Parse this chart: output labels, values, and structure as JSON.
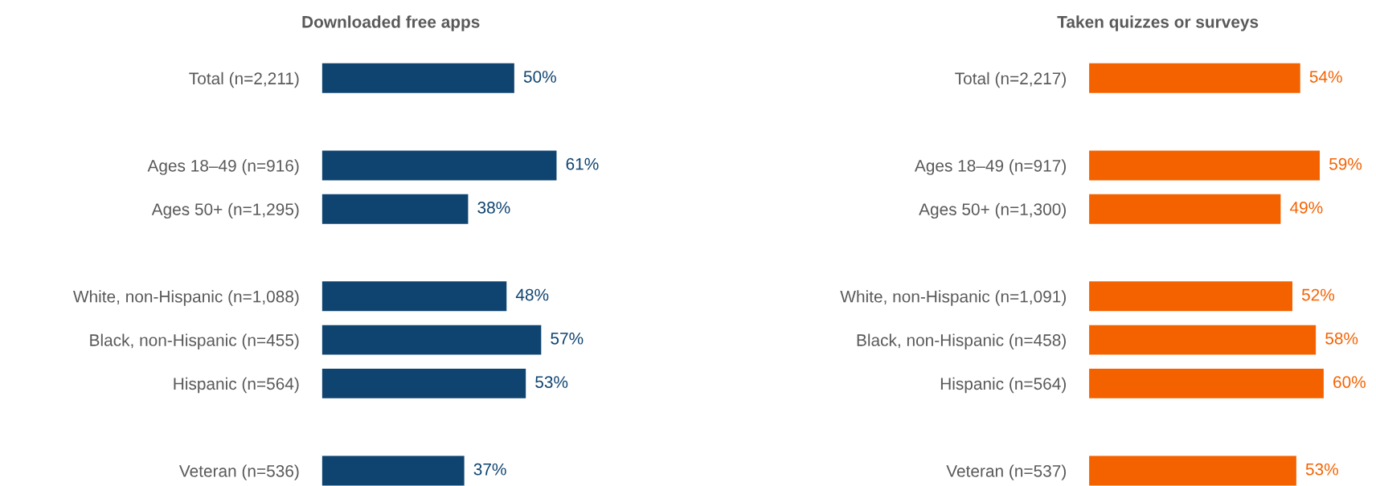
{
  "chart_data": [
    {
      "type": "bar",
      "orientation": "horizontal",
      "title": "Downloaded free apps",
      "value_labels": [
        "50%",
        null,
        "61%",
        "38%",
        null,
        "48%",
        "57%",
        "53%",
        null,
        "37%"
      ],
      "color": "#0f4470",
      "categories": [
        "Total (n=2,211)",
        null,
        "Ages 18–49 (n=916)",
        "Ages 50+ (n=1,295)",
        null,
        "White, non-Hispanic (n=1,088)",
        "Black, non-Hispanic (n=455)",
        "Hispanic (n=564)",
        null,
        "Veteran (n=536)"
      ],
      "values": [
        50,
        null,
        61,
        38,
        null,
        48,
        57,
        53,
        null,
        37
      ]
    },
    {
      "type": "bar",
      "orientation": "horizontal",
      "title": "Taken quizzes or surveys",
      "value_labels": [
        "54%",
        null,
        "59%",
        "49%",
        null,
        "52%",
        "58%",
        "60%",
        null,
        "53%"
      ],
      "color": "#f46200",
      "categories": [
        "Total (n=2,217)",
        null,
        "Ages 18–49 (n=917)",
        "Ages 50+ (n=1,300)",
        null,
        "White, non-Hispanic (n=1,091)",
        "Black, non-Hispanic (n=458)",
        "Hispanic (n=564)",
        null,
        "Veteran (n=537)"
      ],
      "values": [
        54,
        null,
        59,
        49,
        null,
        52,
        58,
        60,
        null,
        53
      ]
    }
  ]
}
